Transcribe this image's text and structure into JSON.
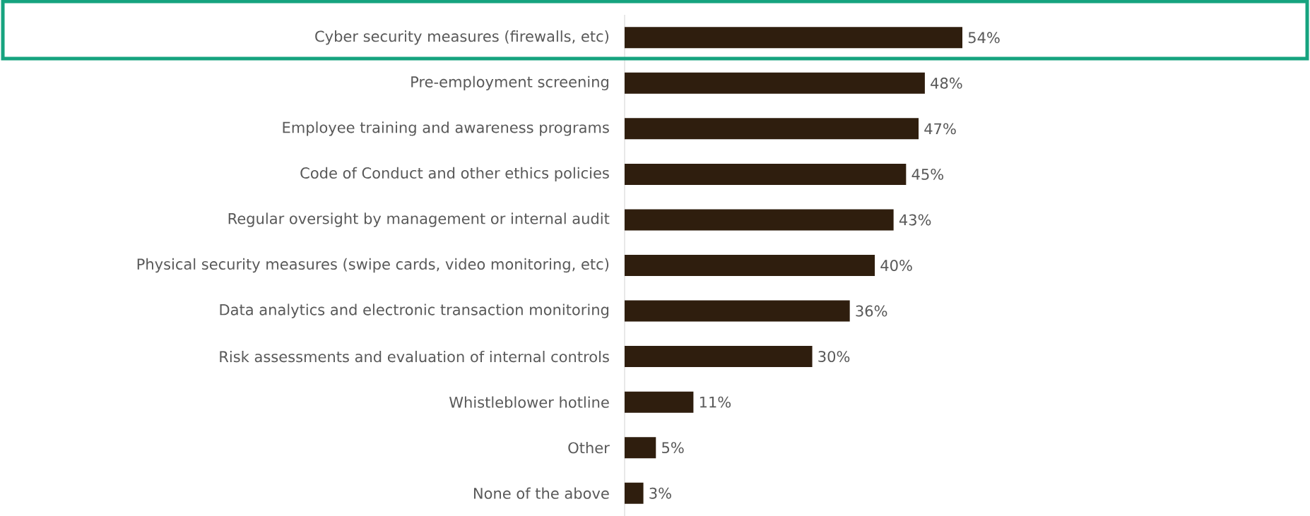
{
  "chart_data": {
    "type": "bar",
    "orientation": "horizontal",
    "categories": [
      "Cyber security measures (firewalls, etc)",
      "Pre-employment screening",
      "Employee training and awareness programs",
      "Code of Conduct and other ethics policies",
      "Regular oversight by management or internal audit",
      "Physical security measures (swipe cards, video monitoring, etc)",
      "Data analytics and electronic transaction monitoring",
      "Risk assessments and evaluation of internal controls",
      "Whistleblower hotline",
      "Other",
      "None of the above"
    ],
    "values": [
      54,
      48,
      47,
      45,
      43,
      40,
      36,
      30,
      11,
      5,
      3
    ],
    "value_labels": [
      "54%",
      "48%",
      "47%",
      "45%",
      "43%",
      "40%",
      "36%",
      "30%",
      "11%",
      "5%",
      "3%"
    ],
    "color": "#2f1e0e"
  }
}
